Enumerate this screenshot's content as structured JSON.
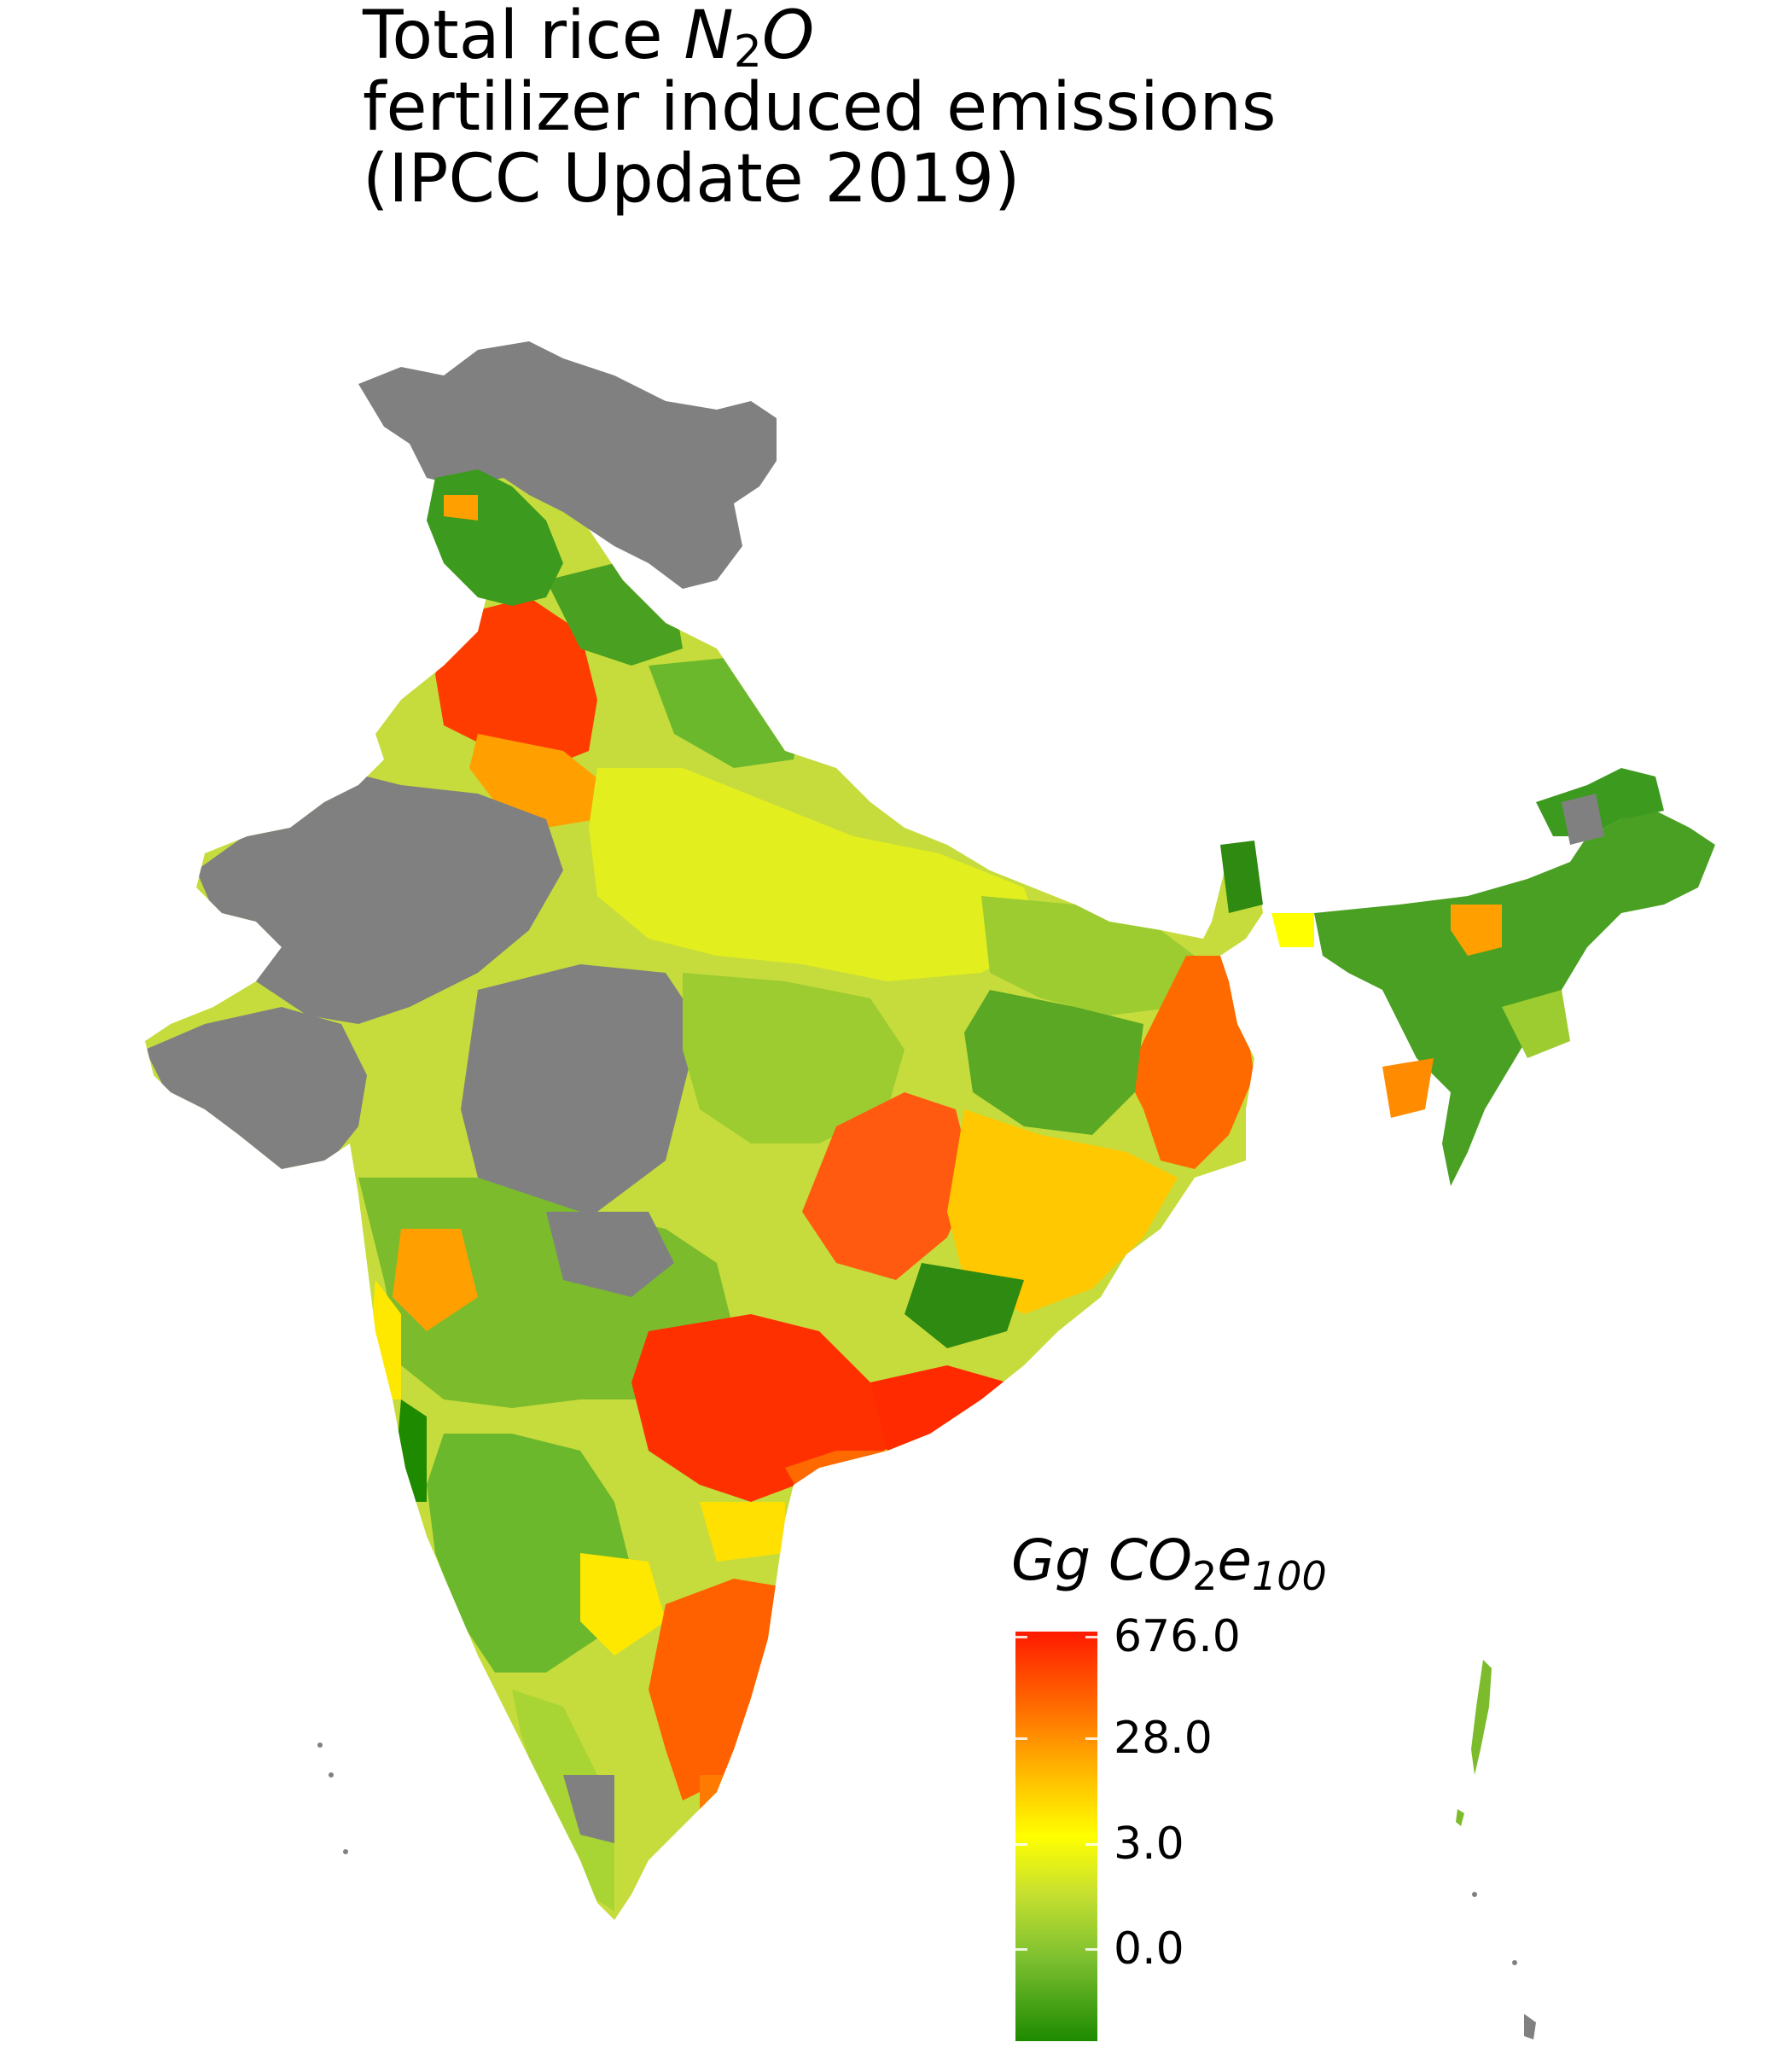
{
  "title": {
    "line1_prefix": "Total rice ",
    "line1_sym": "N",
    "line1_sub": "2",
    "line1_sym2": "O",
    "line2": "fertilizer induced emissions",
    "line3": "(IPCC Update 2019)"
  },
  "legend": {
    "title_a": "Gg CO",
    "title_sub": "2",
    "title_b": "e",
    "title_small": "100",
    "ticks": [
      "676.0",
      "28.0",
      "3.0",
      "0.0"
    ]
  },
  "colors": {
    "no_data": "#808080",
    "low": "#1e8a00",
    "mid_low": "#9acd32",
    "mid": "#ffff00",
    "mid_high": "#ffa500",
    "high": "#ff1a00"
  }
}
